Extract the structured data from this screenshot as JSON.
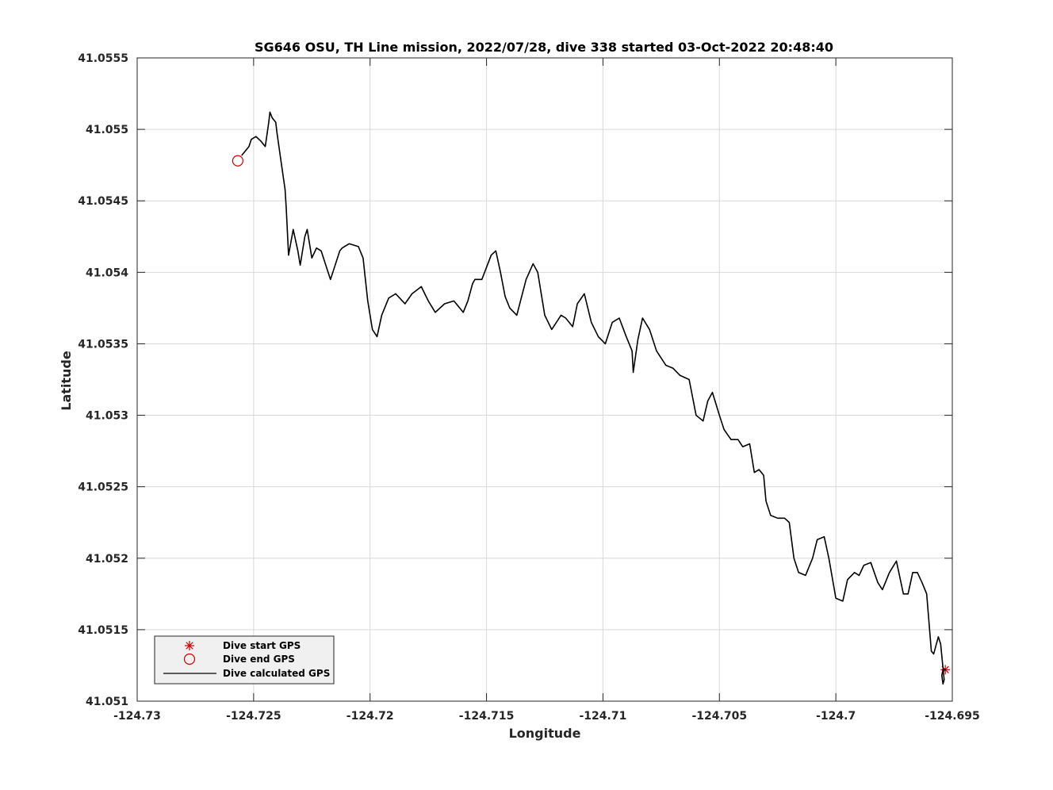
{
  "chart_data": {
    "type": "line",
    "title": "SG646 OSU, TH Line mission, 2022/07/28, dive 338 started 03-Oct-2022 20:48:40",
    "xlabel": "Longitude",
    "ylabel": "Latitude",
    "xlim": [
      -124.73,
      -124.695
    ],
    "ylim": [
      41.051,
      41.0555
    ],
    "xticks": [
      -124.73,
      -124.725,
      -124.72,
      -124.715,
      -124.71,
      -124.705,
      -124.7,
      -124.695
    ],
    "xtick_labels": [
      "-124.73",
      "-124.725",
      "-124.72",
      "-124.715",
      "-124.71",
      "-124.705",
      "-124.7",
      "-124.695"
    ],
    "yticks": [
      41.051,
      41.0515,
      41.052,
      41.0525,
      41.053,
      41.0535,
      41.054,
      41.0545,
      41.055,
      41.0555
    ],
    "ytick_labels": [
      "41.051",
      "41.0515",
      "41.052",
      "41.0525",
      "41.053",
      "41.0535",
      "41.054",
      "41.0545",
      "41.055",
      "41.0555"
    ],
    "grid": true,
    "legend_position": "bottom-left",
    "series": [
      {
        "name": "Dive start GPS",
        "kind": "marker",
        "marker": "asterisk",
        "color": "#cc0000",
        "x": [
          -124.6953
        ],
        "y": [
          41.05122
        ]
      },
      {
        "name": "Dive end GPS",
        "kind": "marker",
        "marker": "circle",
        "color": "#cc0000",
        "x": [
          -124.72568
        ],
        "y": [
          41.05478
        ]
      },
      {
        "name": "Dive calculated GPS",
        "kind": "line",
        "color": "#000000",
        "x": [
          -124.7255,
          -124.7252,
          -124.7251,
          -124.7249,
          -124.7247,
          -124.7245,
          -124.72435,
          -124.7243,
          -124.7242,
          -124.72405,
          -124.724,
          -124.7238,
          -124.72365,
          -124.7236,
          -124.7235,
          -124.7233,
          -124.7231,
          -124.723,
          -124.7228,
          -124.7227,
          -124.7226,
          -124.7225,
          -124.7223,
          -124.7221,
          -124.7219,
          -124.7217,
          -124.7215,
          -124.7213,
          -124.7212,
          -124.7209,
          -124.7205,
          -124.7203,
          -124.7201,
          -124.71995,
          -124.7199,
          -124.7197,
          -124.7195,
          -124.7192,
          -124.7189,
          -124.7185,
          -124.7182,
          -124.7178,
          -124.7175,
          -124.7172,
          -124.7168,
          -124.7164,
          -124.716,
          -124.7158,
          -124.7156,
          -124.7155,
          -124.7152,
          -124.7148,
          -124.7146,
          -124.7144,
          -124.7142,
          -124.714,
          -124.7137,
          -124.7133,
          -124.713,
          -124.7128,
          -124.7125,
          -124.7122,
          -124.712,
          -124.7118,
          -124.7116,
          -124.7113,
          -124.7111,
          -124.7108,
          -124.7105,
          -124.7102,
          -124.7099,
          -124.7096,
          -124.7093,
          -124.709,
          -124.70875,
          -124.7087,
          -124.7085,
          -124.7083,
          -124.708,
          -124.7077,
          -124.7073,
          -124.707,
          -124.7067,
          -124.7063,
          -124.706,
          -124.7057,
          -124.7055,
          -124.7053,
          -124.705,
          -124.7048,
          -124.7045,
          -124.7042,
          -124.704,
          -124.7037,
          -124.7035,
          -124.7033,
          -124.7031,
          -124.703,
          -124.7028,
          -124.7025,
          -124.7022,
          -124.702,
          -124.7018,
          -124.7016,
          -124.7013,
          -124.701,
          -124.7008,
          -124.7005,
          -124.7003,
          -124.7,
          -124.6997,
          -124.6995,
          -124.6992,
          -124.699,
          -124.6988,
          -124.6985,
          -124.6982,
          -124.698,
          -124.6977,
          -124.6974,
          -124.6971,
          -124.6969,
          -124.6967,
          -124.6965,
          -124.6963,
          -124.6961,
          -124.6959,
          -124.6958,
          -124.6956,
          -124.6955,
          -124.69535,
          -124.6954,
          -124.69545,
          -124.6954,
          -124.6953
        ],
        "y": [
          41.05482,
          41.05488,
          41.05493,
          41.05495,
          41.05492,
          41.05488,
          41.05505,
          41.05512,
          41.05508,
          41.05505,
          41.05498,
          41.05475,
          41.05458,
          41.05445,
          41.05412,
          41.0543,
          41.05415,
          41.05405,
          41.05425,
          41.0543,
          41.0542,
          41.0541,
          41.05417,
          41.05415,
          41.05405,
          41.05395,
          41.05405,
          41.05415,
          41.05417,
          41.0542,
          41.05418,
          41.0541,
          41.0538,
          41.05365,
          41.0536,
          41.05355,
          41.0537,
          41.05382,
          41.05385,
          41.05378,
          41.05385,
          41.0539,
          41.0538,
          41.05372,
          41.05378,
          41.0538,
          41.05372,
          41.0538,
          41.05392,
          41.05395,
          41.05395,
          41.05412,
          41.05415,
          41.054,
          41.05383,
          41.05375,
          41.0537,
          41.05395,
          41.05406,
          41.054,
          41.0537,
          41.0536,
          41.05365,
          41.0537,
          41.05368,
          41.05362,
          41.05378,
          41.05385,
          41.05365,
          41.05355,
          41.0535,
          41.05365,
          41.05368,
          41.05355,
          41.05345,
          41.0533,
          41.05353,
          41.05368,
          41.0536,
          41.05345,
          41.05335,
          41.05333,
          41.05328,
          41.05325,
          41.053,
          41.05296,
          41.0531,
          41.05316,
          41.053,
          41.0529,
          41.05283,
          41.05283,
          41.05278,
          41.0528,
          41.0526,
          41.05262,
          41.05258,
          41.0524,
          41.0523,
          41.05228,
          41.05228,
          41.05225,
          41.052,
          41.0519,
          41.05188,
          41.052,
          41.05213,
          41.05215,
          41.052,
          41.05172,
          41.0517,
          41.05185,
          41.0519,
          41.05188,
          41.05195,
          41.05197,
          41.05183,
          41.05178,
          41.0519,
          41.05198,
          41.05175,
          41.05175,
          41.0519,
          41.0519,
          41.05183,
          41.05175,
          41.05135,
          41.05133,
          41.05145,
          41.0514,
          41.05115,
          41.05112,
          41.05118,
          41.05122,
          41.05122
        ]
      }
    ]
  }
}
